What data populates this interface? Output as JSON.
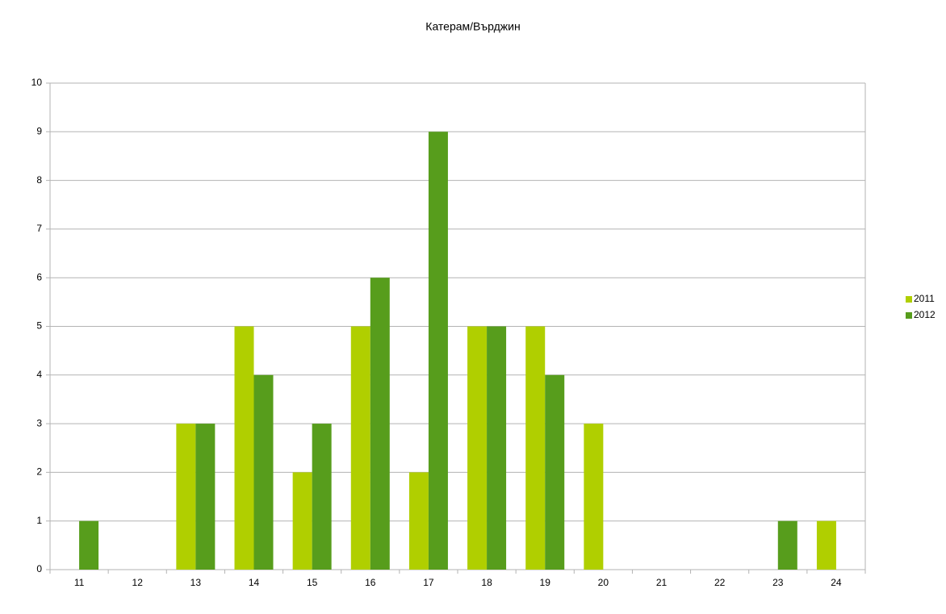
{
  "chart_data": {
    "type": "bar",
    "title": "Катерам/Върджин",
    "categories": [
      "11",
      "12",
      "13",
      "14",
      "15",
      "16",
      "17",
      "18",
      "19",
      "20",
      "21",
      "22",
      "23",
      "24"
    ],
    "series": [
      {
        "name": "2011",
        "color": "#b0cf00",
        "values": [
          0,
          0,
          3,
          5,
          2,
          5,
          2,
          5,
          5,
          3,
          0,
          0,
          0,
          1
        ]
      },
      {
        "name": "2012",
        "color": "#579d1c",
        "values": [
          1,
          0,
          3,
          4,
          3,
          6,
          9,
          5,
          4,
          0,
          0,
          0,
          1,
          0
        ]
      }
    ],
    "ylim": [
      0,
      10
    ],
    "yticks": [
      0,
      1,
      2,
      3,
      4,
      5,
      6,
      7,
      8,
      9,
      10
    ],
    "grid": true,
    "legend": "right"
  }
}
